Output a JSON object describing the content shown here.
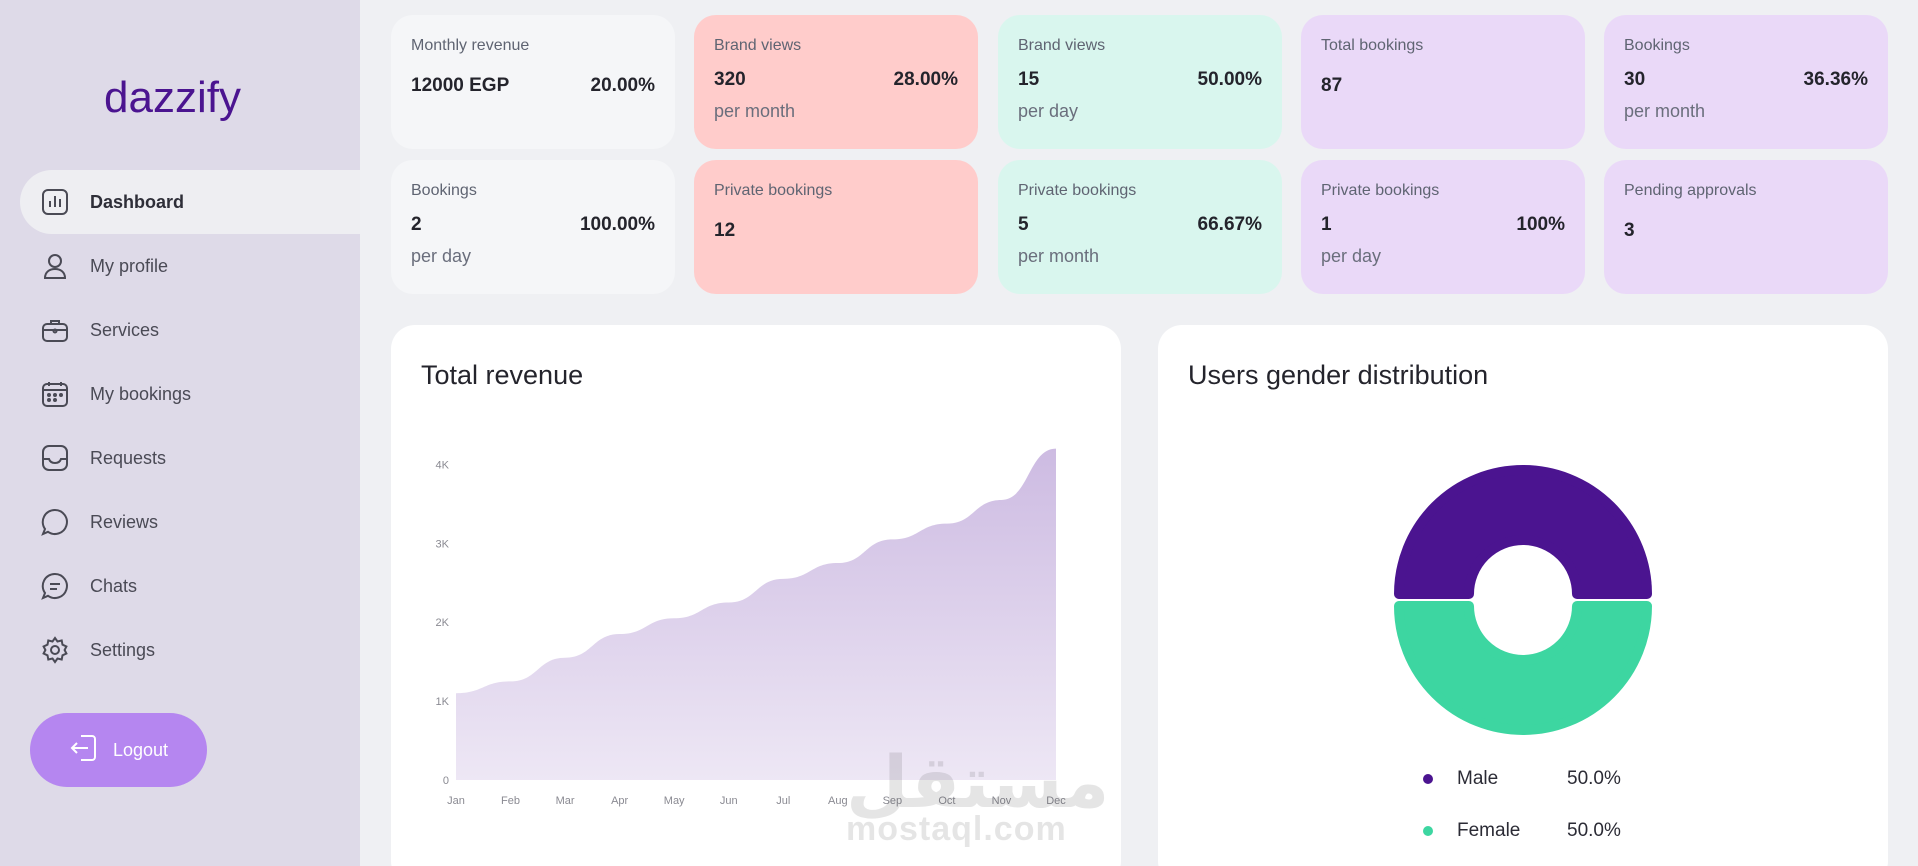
{
  "brand": {
    "logo_text": "dazzify",
    "color": "#4b1490"
  },
  "sidebar": {
    "items": [
      {
        "label": "Dashboard",
        "icon": "chart-icon",
        "active": true
      },
      {
        "label": "My profile",
        "icon": "user-icon"
      },
      {
        "label": "Services",
        "icon": "briefcase-icon"
      },
      {
        "label": "My bookings",
        "icon": "calendar-icon"
      },
      {
        "label": "Requests",
        "icon": "inbox-icon"
      },
      {
        "label": "Reviews",
        "icon": "chat-bubble-icon"
      },
      {
        "label": "Chats",
        "icon": "message-lines-icon"
      },
      {
        "label": "Settings",
        "icon": "gear-icon"
      }
    ],
    "logout_label": "Logout"
  },
  "stats": [
    {
      "title": "Monthly revenue",
      "value": "12000 EGP",
      "percent": "20.00%",
      "sub": ""
    },
    {
      "title": "Brand views",
      "value": "320",
      "percent": "28.00%",
      "sub": "per month"
    },
    {
      "title": "Brand views",
      "value": "15",
      "percent": "50.00%",
      "sub": "per day"
    },
    {
      "title": "Total bookings",
      "value": "87",
      "percent": "",
      "sub": ""
    },
    {
      "title": "Bookings",
      "value": "30",
      "percent": "36.36%",
      "sub": "per month"
    },
    {
      "title": "Bookings",
      "value": "2",
      "percent": "100.00%",
      "sub": "per day"
    },
    {
      "title": "Private bookings",
      "value": "12",
      "percent": "",
      "sub": ""
    },
    {
      "title": "Private bookings",
      "value": "5",
      "percent": "66.67%",
      "sub": "per month"
    },
    {
      "title": "Private bookings",
      "value": "1",
      "percent": "100%",
      "sub": "per day"
    },
    {
      "title": "Pending approvals",
      "value": "3",
      "percent": "",
      "sub": ""
    }
  ],
  "revenue_panel": {
    "title": "Total revenue"
  },
  "gender_panel": {
    "title": "Users gender distribution"
  },
  "chart_data": [
    {
      "type": "area",
      "title": "Total revenue",
      "categories": [
        "Jan",
        "Feb",
        "Mar",
        "Apr",
        "May",
        "Jun",
        "Jul",
        "Aug",
        "Sep",
        "Oct",
        "Nov",
        "Dec"
      ],
      "series": [
        {
          "values": [
            1100,
            1250,
            1550,
            1850,
            2050,
            2250,
            2550,
            2750,
            3050,
            3250,
            3550,
            4200
          ]
        }
      ],
      "y_ticks": [
        "0",
        "1K",
        "2K",
        "3K",
        "4K"
      ],
      "ylim": [
        0,
        4500
      ],
      "color": "#cdbbe2"
    },
    {
      "type": "pie",
      "title": "Users gender distribution",
      "labels": [
        "Male",
        "Female"
      ],
      "values": [
        50.0,
        50.0
      ],
      "display": [
        "50.0%",
        "50.0%"
      ],
      "colors": [
        "#4b1490",
        "#3dd6a1"
      ]
    }
  ],
  "watermark": {
    "arabic": "مستقل",
    "latin": "mostaql.com"
  }
}
